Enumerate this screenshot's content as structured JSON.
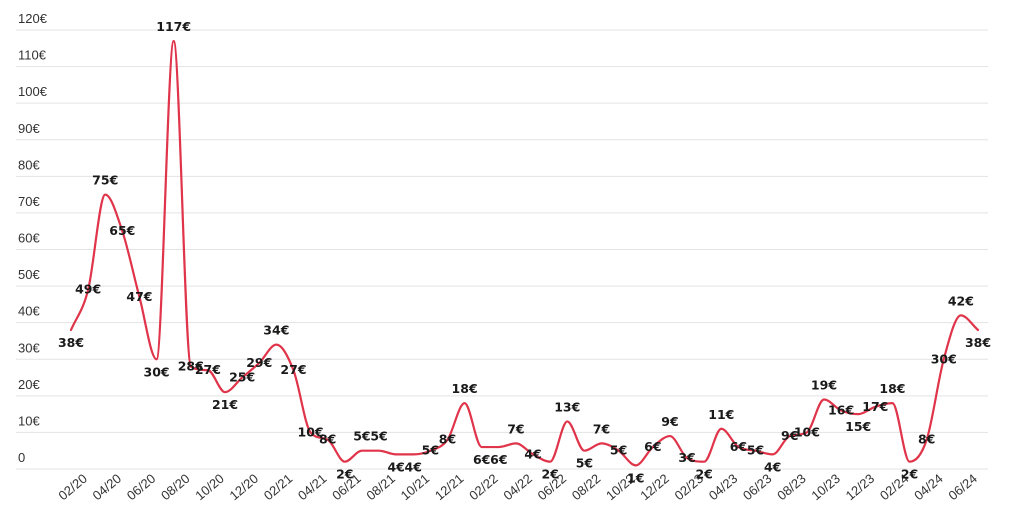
{
  "chart_data": {
    "type": "line",
    "title": "",
    "xlabel": "",
    "ylabel": "",
    "ylim": [
      0,
      120
    ],
    "y_ticks": [
      "0",
      "10€",
      "20€",
      "30€",
      "40€",
      "50€",
      "60€",
      "70€",
      "80€",
      "90€",
      "100€",
      "110€",
      "120€"
    ],
    "x_tick_labels": [
      "02/20",
      "04/20",
      "06/20",
      "08/20",
      "10/20",
      "12/20",
      "02/21",
      "04/21",
      "06/21",
      "08/21",
      "10/21",
      "12/21",
      "02/22",
      "04/22",
      "06/22",
      "08/22",
      "10/22",
      "12/22",
      "02/23",
      "04/23",
      "06/23",
      "08/23",
      "10/23",
      "12/23",
      "02/24",
      "04/24",
      "06/24"
    ],
    "grid": true,
    "legend": "none",
    "color": "#e0344a",
    "series": [
      {
        "values": [
          38,
          49,
          75,
          65,
          47,
          30,
          117,
          28,
          27,
          21,
          25,
          29,
          34,
          27,
          10,
          8,
          2,
          5,
          5,
          4,
          4,
          5,
          8,
          18,
          6,
          6,
          7,
          4,
          2,
          13,
          5,
          7,
          5,
          1,
          6,
          9,
          3,
          2,
          11,
          6,
          5,
          4,
          9,
          10,
          19,
          16,
          15,
          17,
          18,
          2,
          8,
          30,
          42,
          38
        ],
        "labels": [
          "38€",
          "49€",
          "75€",
          "65€",
          "47€",
          "30€",
          "117€",
          "28€",
          "27€",
          "21€",
          "25€",
          "29€",
          "34€",
          "27€",
          "10€",
          "8€",
          "2€",
          "5€",
          "5€",
          "4€",
          "4€",
          "5€",
          "8€",
          "18€",
          "6€",
          "6€",
          "7€",
          "4€",
          "2€",
          "13€",
          "5€",
          "7€",
          "5€",
          "1€",
          "6€",
          "9€",
          "3€",
          "2€",
          "11€",
          "6€",
          "5€",
          "4€",
          "9€",
          "10€",
          "19€",
          "16€",
          "15€",
          "17€",
          "18€",
          "2€",
          "8€",
          "30€",
          "42€",
          "38€"
        ]
      }
    ]
  }
}
